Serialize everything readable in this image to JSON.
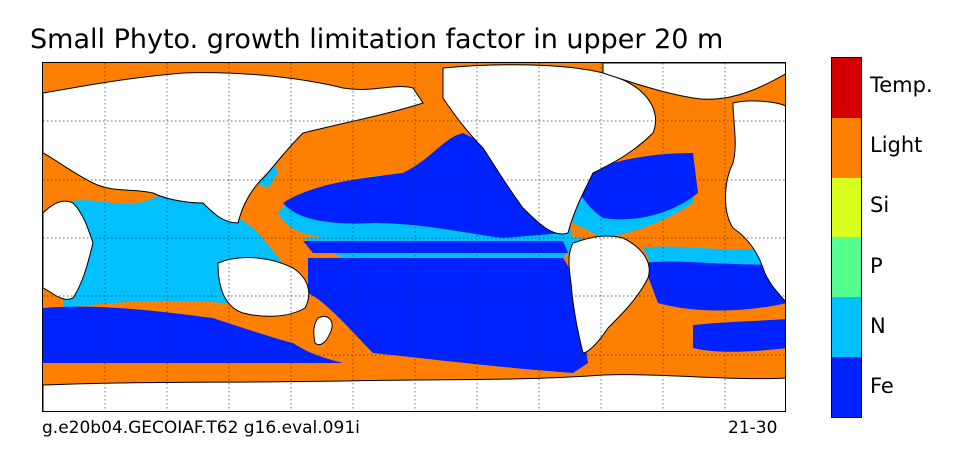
{
  "title": "Small Phyto. growth limitation factor in upper 20 m",
  "footer": {
    "left": "g.e20b04.GECOIAF.T62 g16.eval.091i",
    "right": "21-30"
  },
  "legend": {
    "items": [
      {
        "label": "Temp.",
        "color": "#d40000"
      },
      {
        "label": "Light",
        "color": "#ff8000"
      },
      {
        "label": "Si",
        "color": "#d8ff1e"
      },
      {
        "label": "P",
        "color": "#55ff8f"
      },
      {
        "label": "N",
        "color": "#00c0ff"
      },
      {
        "label": "Fe",
        "color": "#0022ff"
      }
    ]
  },
  "map_colors": {
    "ocean_light": "#ff8000",
    "fe": "#0022ff",
    "n": "#00c0ff",
    "p": "#55ff8f",
    "land": "#ffffff"
  }
}
